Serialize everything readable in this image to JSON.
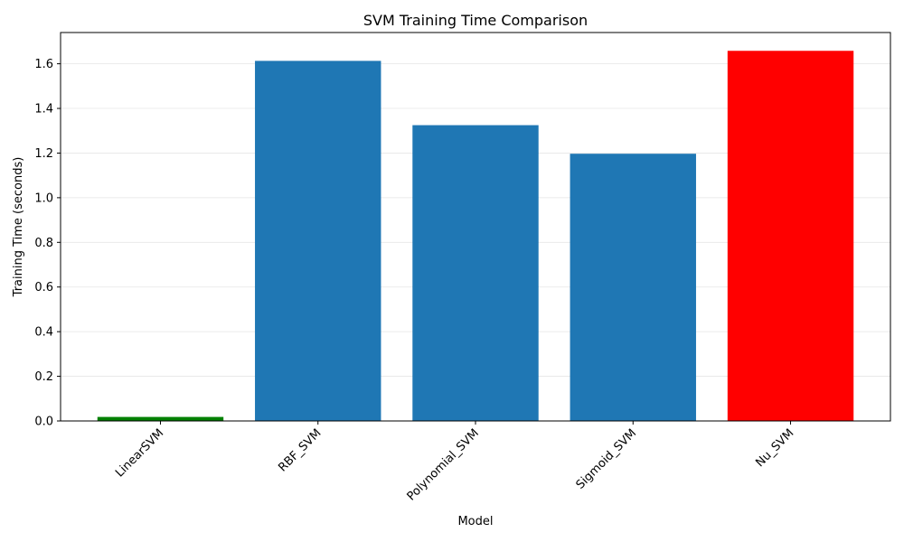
{
  "chart_data": {
    "type": "bar",
    "title": "SVM Training Time Comparison",
    "xlabel": "Model",
    "ylabel": "Training Time (seconds)",
    "categories": [
      "LinearSVM",
      "RBF_SVM",
      "Polynomial_SVM",
      "Sigmoid_SVM",
      "Nu_SVM"
    ],
    "values": [
      0.018,
      1.613,
      1.325,
      1.197,
      1.658
    ],
    "colors": [
      "#008000",
      "#1f77b4",
      "#1f77b4",
      "#1f77b4",
      "#ff0000"
    ],
    "ylim": [
      0,
      1.74
    ],
    "yticks": [
      0.0,
      0.2,
      0.4,
      0.6,
      0.8,
      1.0,
      1.2,
      1.4,
      1.6
    ],
    "grid": "y-axis",
    "x_tick_rotation": "45 degrees"
  }
}
